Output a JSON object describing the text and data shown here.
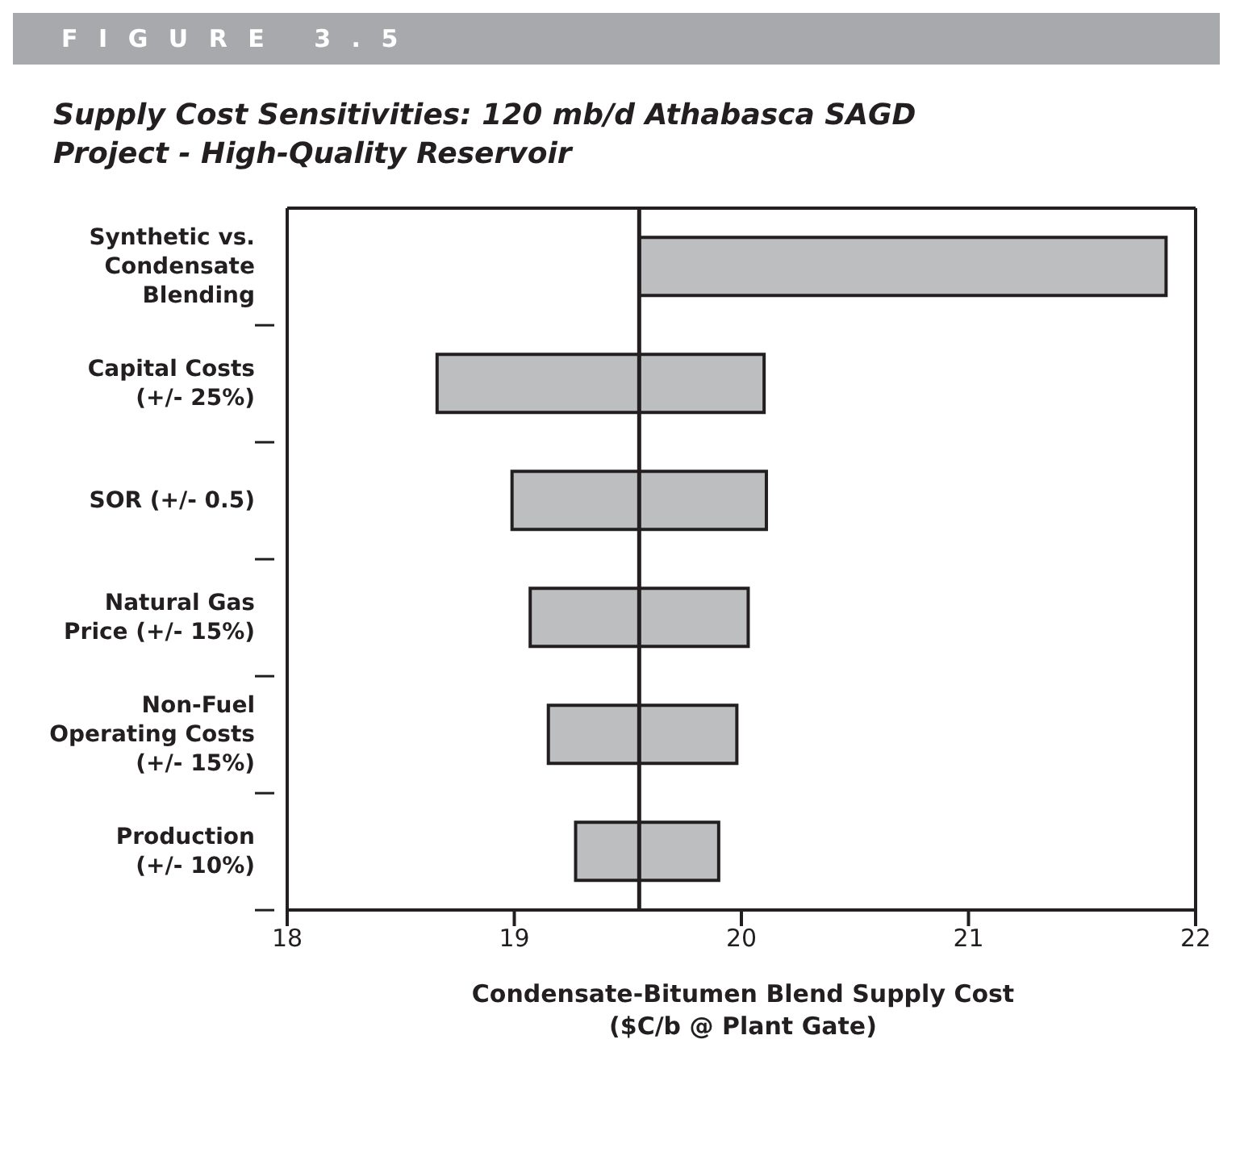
{
  "chart_data": {
    "type": "bar",
    "orientation": "horizontal",
    "title": "Supply Cost Sensitivities:  120 mb/d Athabasca SAGD Project - High-Quality Reservoir",
    "annotations": [
      "FIGURE 3.5"
    ],
    "xlabel": "Condensate-Bitumen Blend Supply Cost ($C/b @ Plant Gate)",
    "categories": [
      "Synthetic vs. Condensate Blending",
      "Capital Costs (+/- 25%)",
      "SOR (+/- 0.5)",
      "Natural Gas Price (+/- 15%)",
      "Non-Fuel Operating Costs (+/- 15%)",
      "Production (+/- 10%)"
    ],
    "base": [
      19.55,
      18.66,
      18.99,
      19.07,
      19.15,
      19.27
    ],
    "values": [
      2.32,
      1.44,
      1.12,
      0.96,
      0.83,
      0.63
    ],
    "color": "#bcbec0",
    "xlim": [
      18,
      22
    ],
    "xticks": [
      18,
      19,
      20,
      21,
      22
    ],
    "ref_lines": [
      {
        "axis": "x",
        "value": 19.55,
        "color": "#231f20"
      }
    ],
    "grid": false,
    "legend": false
  }
}
